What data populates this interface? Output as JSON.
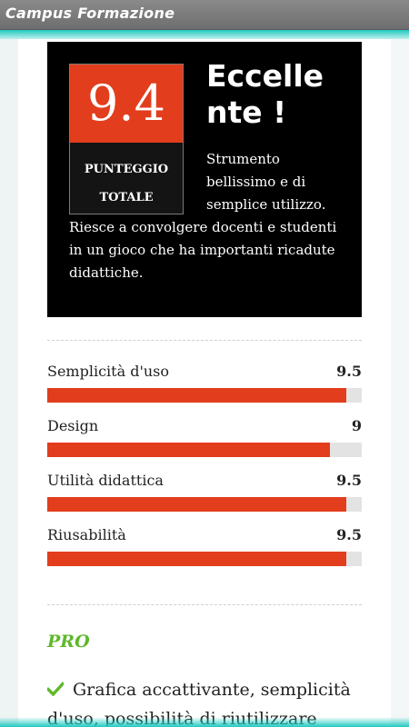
{
  "app": {
    "title": "Campus Formazione"
  },
  "review": {
    "score": "9.4",
    "score_label_line1": "PUNTEGGIO",
    "score_label_line2": "TOTALE",
    "verdict_line1": "Eccelle",
    "verdict_line2": "nte !",
    "summary_part1": "Strumento bellissimo e di semplice utilizzo.",
    "summary_part2": "Riesce a convolgere docenti e studenti in un gioco che ha importanti ricadute didattiche."
  },
  "ratings": [
    {
      "label": "Semplicità d'uso",
      "value": "9.5",
      "score": 9.5
    },
    {
      "label": "Design",
      "value": "9",
      "score": 9
    },
    {
      "label": "Utilità didattica",
      "value": "9.5",
      "score": 9.5
    },
    {
      "label": "Riusabilità",
      "value": "9.5",
      "score": 9.5
    }
  ],
  "rating_scale_max": 10,
  "pro": {
    "heading": "PRO",
    "items": [
      "Grafica accattivante, semplicità d'uso, possibilità di riutilizzare tanti"
    ]
  },
  "colors": {
    "accent": "#e23d1c",
    "pro_green": "#5fb82b",
    "teal": "#1fc7c0"
  },
  "icons": {
    "pro_item": "check-icon"
  }
}
